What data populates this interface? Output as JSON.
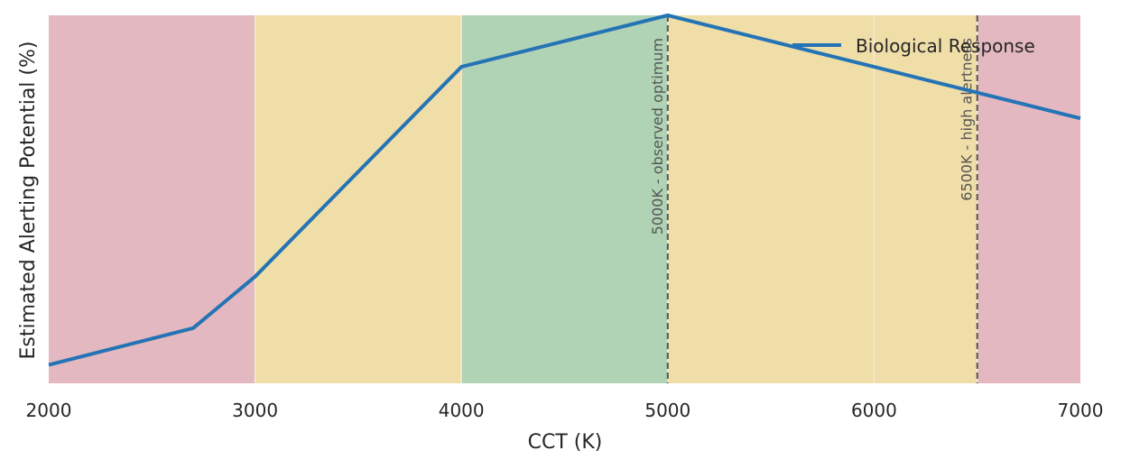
{
  "chart_data": {
    "type": "line",
    "xlabel": "CCT (K)",
    "ylabel": "Estimated Alerting Potential (%)",
    "xlim": [
      2000,
      7000
    ],
    "ylim": [
      0,
      100
    ],
    "x_ticks": [
      "2000",
      "3000",
      "4000",
      "5000",
      "6000",
      "7000"
    ],
    "y_ticks_shown": false,
    "grid": false,
    "legend_position": "top-right",
    "series": [
      {
        "name": "Biological Response",
        "color": "#2474b5",
        "x": [
          2000,
          2700,
          3000,
          4000,
          5000,
          6000,
          6500,
          7000
        ],
        "y": [
          5,
          15,
          29,
          86,
          100,
          86,
          79,
          72
        ]
      }
    ],
    "bands": [
      {
        "x0": 2000,
        "x1": 3000,
        "color": "#e4b8c0"
      },
      {
        "x0": 3000,
        "x1": 4000,
        "color": "#f0dea9"
      },
      {
        "x0": 4000,
        "x1": 5000,
        "color": "#b1d3b5"
      },
      {
        "x0": 5000,
        "x1": 6000,
        "color": "#f0dea9"
      },
      {
        "x0": 6000,
        "x1": 6500,
        "color": "#f0dea9"
      },
      {
        "x0": 6500,
        "x1": 7000,
        "color": "#e4b8c0"
      }
    ],
    "reference_lines": [
      {
        "x": 5000,
        "label": "5000K - observed optimum"
      },
      {
        "x": 6500,
        "label": "6500K - high alertness"
      }
    ]
  }
}
